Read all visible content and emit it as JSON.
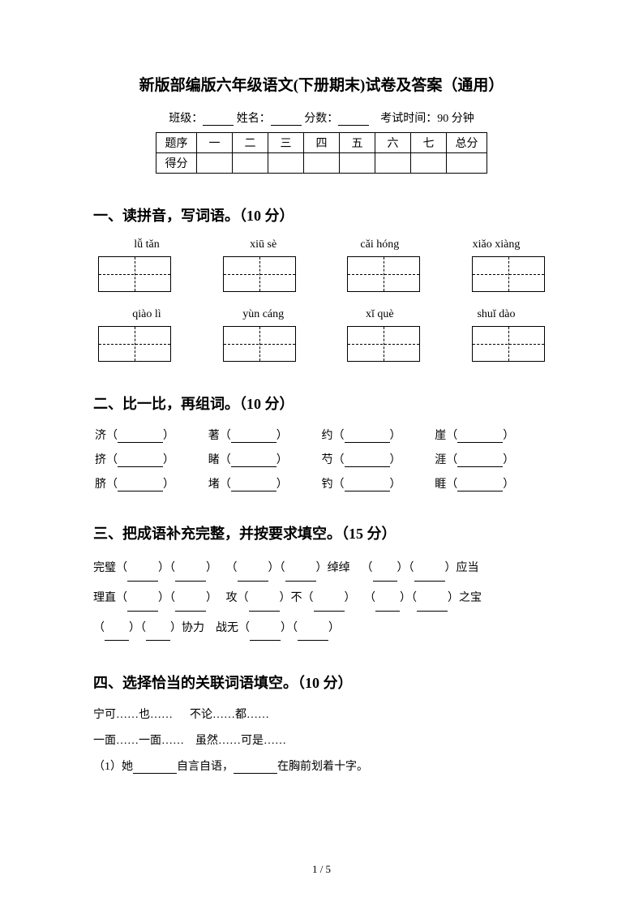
{
  "title": "新版部编版六年级语文(下册期末)试卷及答案（通用）",
  "info": {
    "class_label": "班级：",
    "name_label": "姓名：",
    "score_label": "分数：",
    "time_label": "考试时间：90 分钟"
  },
  "score_table": {
    "row1_label": "题序",
    "row2_label": "得分",
    "cols": [
      "一",
      "二",
      "三",
      "四",
      "五",
      "六",
      "七"
    ],
    "total": "总分"
  },
  "section1": {
    "title": "一、读拼音，写词语。（10 分）",
    "pinyin_row1": [
      "lǚ  tǎn",
      "xiū sè",
      "cǎi hóng",
      "xiǎo xiàng"
    ],
    "pinyin_row2": [
      "qiào lì",
      "yùn cáng",
      "xǐ què",
      "shuǐ dào"
    ]
  },
  "section2": {
    "title": "二、比一比，再组词。（10 分）",
    "rows": [
      [
        "济",
        "著",
        "约",
        "崖"
      ],
      [
        "挤",
        "睹",
        "芍",
        "涯"
      ],
      [
        "脐",
        "堵",
        "钓",
        "睚"
      ]
    ]
  },
  "section3": {
    "title": "三、把成语补充完整，并按要求填空。（15 分）",
    "line1_a": "完璧",
    "line1_b": "绰绰",
    "line1_c": "应当",
    "line2_a": "理直",
    "line2_b": "攻",
    "line2_c": "不",
    "line2_d": "之宝",
    "line3_a": "协力",
    "line3_b": "战无"
  },
  "section4": {
    "title": "四、选择恰当的关联词语填空。（10 分）",
    "opt1": "宁可……也……",
    "opt2": "不论……都……",
    "opt3": "一面……一面……",
    "opt4": "虽然……可是……",
    "q1_a": "（1）她",
    "q1_b": "自言自语，",
    "q1_c": "在胸前划着十字。"
  },
  "page_num": "1 / 5"
}
